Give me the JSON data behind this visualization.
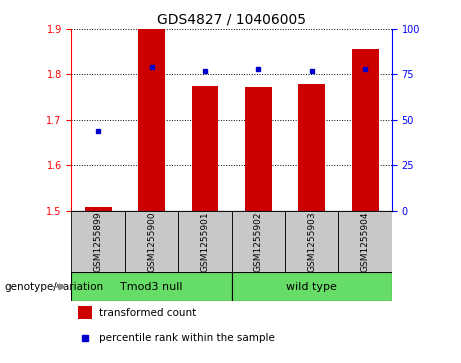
{
  "title": "GDS4827 / 10406005",
  "samples": [
    "GSM1255899",
    "GSM1255900",
    "GSM1255901",
    "GSM1255902",
    "GSM1255903",
    "GSM1255904"
  ],
  "red_values": [
    1.507,
    1.9,
    1.775,
    1.772,
    1.778,
    1.855
  ],
  "blue_values": [
    44,
    79,
    77,
    78,
    77,
    78
  ],
  "ylim_left": [
    1.5,
    1.9
  ],
  "ylim_right": [
    0,
    100
  ],
  "yticks_left": [
    1.5,
    1.6,
    1.7,
    1.8,
    1.9
  ],
  "yticks_right": [
    0,
    25,
    50,
    75,
    100
  ],
  "group_label": "genotype/variation",
  "groups": [
    {
      "label": "Tmod3 null",
      "start": 0,
      "end": 3
    },
    {
      "label": "wild type",
      "start": 3,
      "end": 6
    }
  ],
  "legend_red": "transformed count",
  "legend_blue": "percentile rank within the sample",
  "bar_color": "#CC0000",
  "dot_color": "#0000CC",
  "plot_bg": "#FFFFFF",
  "label_area_color": "#C8C8C8",
  "group_color": "#66DD66",
  "bar_width": 0.5,
  "title_fontsize": 10,
  "tick_fontsize": 7,
  "sample_fontsize": 6.5,
  "group_fontsize": 8,
  "legend_fontsize": 7.5
}
